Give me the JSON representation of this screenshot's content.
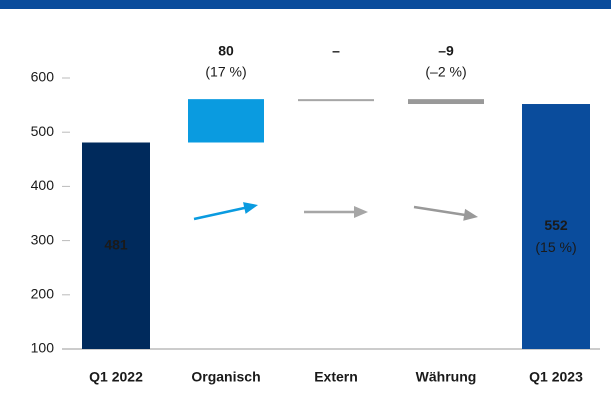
{
  "chart_data": {
    "type": "waterfall",
    "categories": [
      "Q1 2022",
      "Organisch",
      "Extern",
      "Währung",
      "Q1 2023"
    ],
    "kinds": [
      "total",
      "delta",
      "delta",
      "delta",
      "total"
    ],
    "values": [
      481,
      80,
      0,
      -9,
      552
    ],
    "value_labels": [
      "481",
      "80",
      "–",
      "–9",
      "552"
    ],
    "percent_labels": [
      null,
      "(17 %)",
      null,
      "(–2 %)",
      "(15 %)"
    ],
    "colors": [
      "#002a5c",
      "#0a9be0",
      "#a6a6a6",
      "#999999",
      "#0a4c9c"
    ],
    "highlight_index": 4,
    "ylim": [
      100,
      600
    ],
    "yticks": [
      100,
      200,
      300,
      400,
      500,
      600
    ]
  }
}
